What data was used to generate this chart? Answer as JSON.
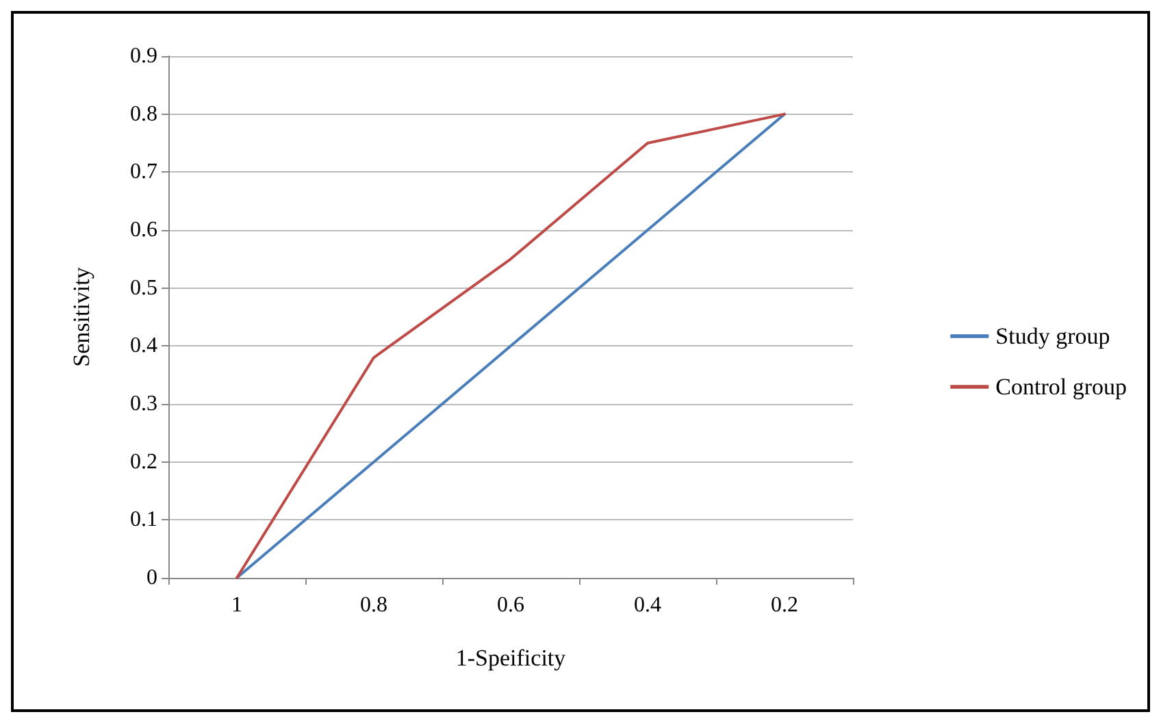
{
  "chart_data": {
    "type": "line",
    "xlabel": "1-Speificity",
    "ylabel": "Sensitivity",
    "categories": [
      "1",
      "0.8",
      "0.6",
      "0.4",
      "0.2"
    ],
    "series": [
      {
        "name": "Study group",
        "color": "#4a7ebb",
        "values": [
          0,
          0.2,
          0.4,
          0.6,
          0.8
        ]
      },
      {
        "name": "Control group",
        "color": "#be4b48",
        "values": [
          0,
          0.38,
          0.55,
          0.75,
          0.8
        ]
      }
    ],
    "ylim": [
      0,
      0.9
    ],
    "yticks": [
      0,
      0.1,
      0.2,
      0.3,
      0.4,
      0.5,
      0.6,
      0.7,
      0.8,
      0.9
    ],
    "grid": "y",
    "legend": "right",
    "marker": "none",
    "line_style": "solid"
  }
}
